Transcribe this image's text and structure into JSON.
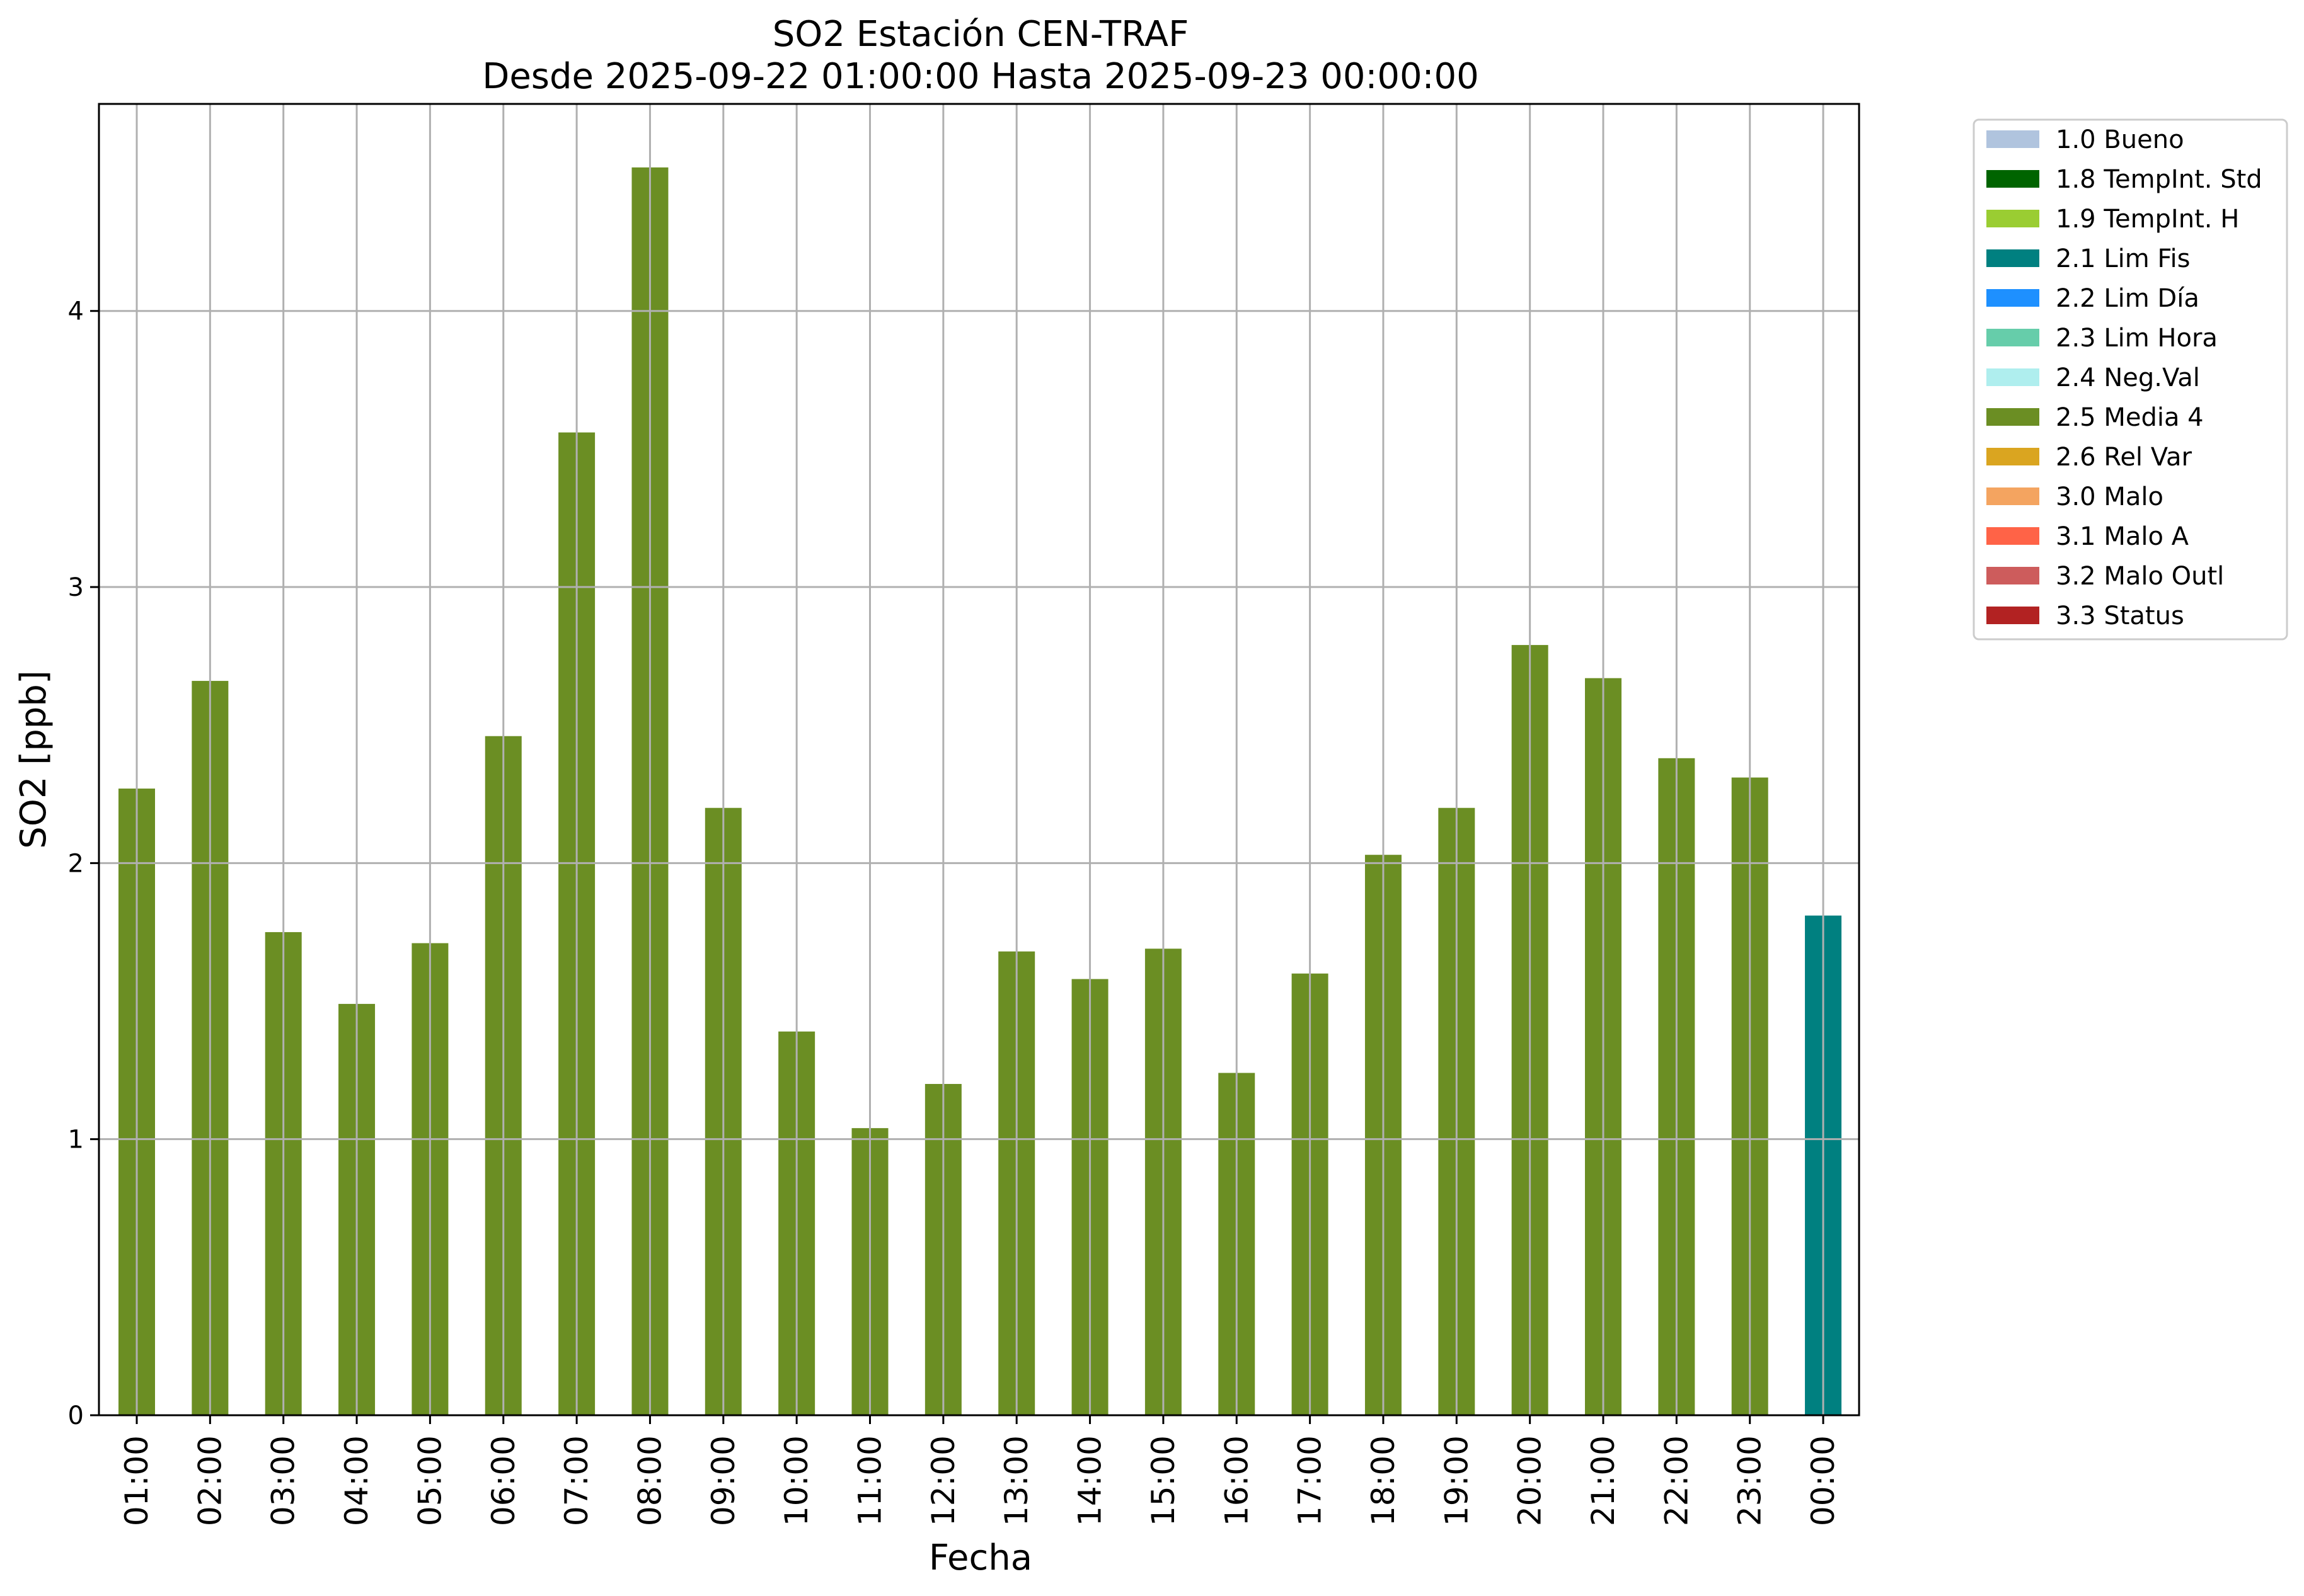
{
  "chart_data": {
    "type": "bar",
    "title": [
      "SO2 Estación CEN-TRAF",
      "Desde 2025-09-22 01:00:00 Hasta 2025-09-23 00:00:00"
    ],
    "xlabel": "Fecha",
    "ylabel": "SO2 [ppb]",
    "ylim": [
      0,
      4.75
    ],
    "yticks": [
      0,
      1,
      2,
      3,
      4
    ],
    "grid": true,
    "legend_position": "outside-top-right",
    "categories": [
      "01:00",
      "02:00",
      "03:00",
      "04:00",
      "05:00",
      "06:00",
      "07:00",
      "08:00",
      "09:00",
      "10:00",
      "11:00",
      "12:00",
      "13:00",
      "14:00",
      "15:00",
      "16:00",
      "17:00",
      "18:00",
      "19:00",
      "20:00",
      "21:00",
      "22:00",
      "23:00",
      "00:00"
    ],
    "values": [
      2.27,
      2.66,
      1.75,
      1.49,
      1.71,
      2.46,
      3.56,
      4.52,
      2.2,
      1.39,
      1.04,
      1.2,
      1.68,
      1.58,
      1.69,
      1.24,
      1.6,
      2.03,
      2.2,
      2.79,
      2.67,
      2.38,
      2.31,
      1.81
    ],
    "bar_flags": [
      "2.5 Media 4",
      "2.5 Media 4",
      "2.5 Media 4",
      "2.5 Media 4",
      "2.5 Media 4",
      "2.5 Media 4",
      "2.5 Media 4",
      "2.5 Media 4",
      "2.5 Media 4",
      "2.5 Media 4",
      "2.5 Media 4",
      "2.5 Media 4",
      "2.5 Media 4",
      "2.5 Media 4",
      "2.5 Media 4",
      "2.5 Media 4",
      "2.5 Media 4",
      "2.5 Media 4",
      "2.5 Media 4",
      "2.5 Media 4",
      "2.5 Media 4",
      "2.5 Media 4",
      "2.5 Media 4",
      "2.1 Lim Fis"
    ],
    "legend": [
      {
        "label": "1.0 Bueno",
        "color": "#b0c4de"
      },
      {
        "label": "1.8 TempInt. Std",
        "color": "#006400"
      },
      {
        "label": "1.9 TempInt. H",
        "color": "#9acd32"
      },
      {
        "label": "2.1 Lim Fis",
        "color": "#008080"
      },
      {
        "label": "2.2 Lim Día",
        "color": "#1e90ff"
      },
      {
        "label": "2.3 Lim Hora",
        "color": "#66cdaa"
      },
      {
        "label": "2.4 Neg.Val",
        "color": "#afeeee"
      },
      {
        "label": "2.5 Media 4",
        "color": "#6b8e23"
      },
      {
        "label": "2.6 Rel Var",
        "color": "#daa520"
      },
      {
        "label": "3.0 Malo",
        "color": "#f4a460"
      },
      {
        "label": "3.1 Malo A",
        "color": "#ff6347"
      },
      {
        "label": "3.2 Malo Outl",
        "color": "#cd5c5c"
      },
      {
        "label": "3.3 Status",
        "color": "#b22222"
      }
    ]
  }
}
